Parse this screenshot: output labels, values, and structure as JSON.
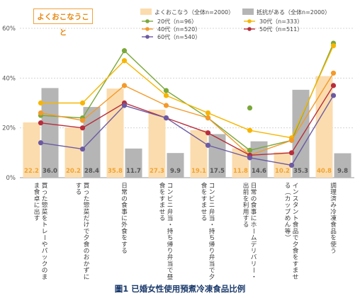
{
  "badge_label": "よくおこなうこと",
  "caption": "圖1 已婚女性使用預煮冷凍食品比例",
  "chart_data": {
    "type": "bar",
    "ylim": [
      0,
      60
    ],
    "yticks": [
      "0%",
      "20%",
      "40%",
      "60%"
    ],
    "categories": [
      "買った惣菜をトレーやパックのまま食卓に出す",
      "買った惣菜だけで夕食のおかずにする",
      "日常の食事に外食をする",
      "コンビニ弁当・持ち帰り弁当で昼食をすませる",
      "コンビニ弁当・持ち帰り弁当で夕食をすませる",
      "日常の食事にホームデリバリー・出前を利用する",
      "インスタント食品で夕食をすませる（カップめん等）",
      "調理済み冷凍食品を使う"
    ],
    "bar_series": [
      {
        "name": "よくおこなう（全体n=2000）",
        "color": "#fbdcae",
        "values": [
          22.2,
          20.2,
          35.8,
          27.3,
          19.1,
          11.8,
          10.2,
          40.8
        ],
        "labels": [
          "22.2",
          "20.2",
          "35.8",
          "27.3",
          "19.1",
          "11.8",
          "10.2",
          "40.8"
        ],
        "label_color": "#f0a434"
      },
      {
        "name": "抵抗がある（全体n=2000）",
        "color": "#b5b5b5",
        "values": [
          36.0,
          28.4,
          11.7,
          9.9,
          17.5,
          14.6,
          35.3,
          9.8
        ],
        "labels": [
          "36.0",
          "28.4",
          "11.7",
          "9.9",
          "17.5",
          "14.6",
          "35.3",
          "9.8"
        ],
        "label_color": "#555555"
      }
    ],
    "line_series": [
      {
        "name": "20代（n=96）",
        "color": "#7aa83a",
        "values": [
          25,
          24,
          51,
          35,
          24,
          11,
          15,
          54
        ]
      },
      {
        "name": "30代（n=333）",
        "color": "#f7b500",
        "values": [
          30,
          30,
          47,
          33,
          26,
          19,
          16,
          53
        ]
      },
      {
        "name": "40代（n=520）",
        "color": "#f39a2a",
        "values": [
          26,
          23,
          37,
          29,
          24,
          9,
          15,
          42
        ]
      },
      {
        "name": "50代（n=511）",
        "color": "#b82d3c",
        "values": [
          22,
          20,
          30,
          24,
          18,
          9,
          10,
          37
        ]
      },
      {
        "name": "60代（n=540）",
        "color": "#6c5aa3",
        "values": [
          14,
          11.5,
          29,
          24,
          13,
          8,
          5,
          33
        ]
      }
    ],
    "extra_points": [
      {
        "series": "20代（n=96）",
        "category_index": 5,
        "value": 28
      }
    ],
    "grid": true,
    "legend_position": "top"
  }
}
